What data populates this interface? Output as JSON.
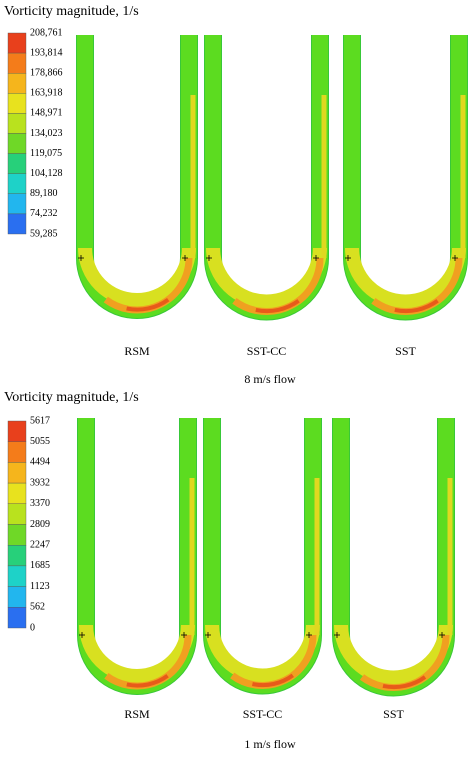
{
  "panels": [
    {
      "legend_title": "Vorticity magnitude, 1/s",
      "legend_labels": [
        "208,761",
        "193,814",
        "178,866",
        "163,918",
        "148,971",
        "134,023",
        "119,075",
        "104,128",
        "89,180",
        "74,232",
        "59,285"
      ],
      "models": [
        "RSM",
        "SST-CC",
        "SST"
      ],
      "caption": "8 m/s flow"
    },
    {
      "legend_title": "Vorticity magnitude, 1/s",
      "legend_labels": [
        "5617",
        "5055",
        "4494",
        "3932",
        "3370",
        "2809",
        "2247",
        "1685",
        "1123",
        "562",
        "0"
      ],
      "models": [
        "RSM",
        "SST-CC",
        "SST"
      ],
      "caption": "1 m/s flow"
    }
  ]
}
